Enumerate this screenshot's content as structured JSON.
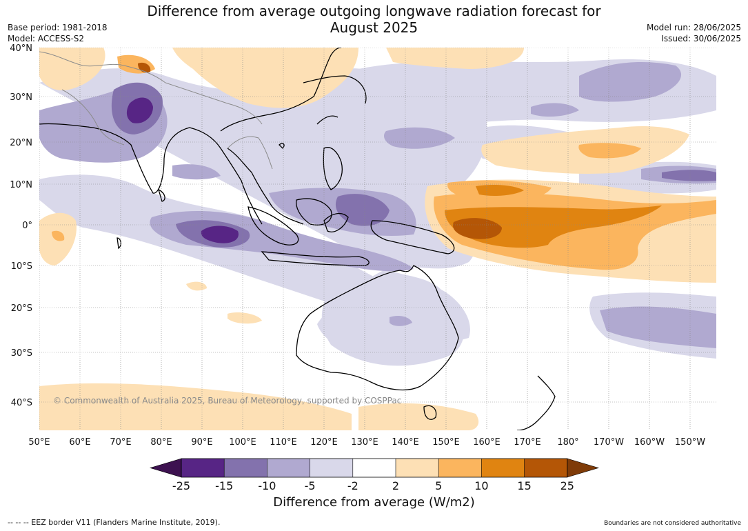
{
  "title_line1": "Difference from average outgoing longwave radiation forecast for",
  "title_line2": "August 2025",
  "base_period": "Base period: 1981-2018",
  "model": "Model: ACCESS-S2",
  "model_run": "Model run: 28/06/2025",
  "issued": "Issued: 30/06/2025",
  "lat_labels": [
    "40°N",
    "30°N",
    "20°N",
    "10°N",
    "0°",
    "10°S",
    "20°S",
    "30°S",
    "40°S"
  ],
  "lon_labels": [
    "50°E",
    "60°E",
    "70°E",
    "80°E",
    "90°E",
    "100°E",
    "110°E",
    "120°E",
    "130°E",
    "140°E",
    "150°E",
    "160°E",
    "170°E",
    "180°",
    "170°W",
    "160°W",
    "150°W"
  ],
  "copyright": "© Commonwealth of Australia 2025, Bureau of Meteorology, supported by COSPPac",
  "colorbar": {
    "title": "Difference from average (W/m2)",
    "ticks": [
      "-25",
      "-15",
      "-10",
      "-5",
      "-2",
      "2",
      "5",
      "10",
      "15",
      "25"
    ],
    "colors": [
      "#3d1150",
      "#572585",
      "#8372ad",
      "#b0a9d0",
      "#d9d8ea",
      "#ffffff",
      "#fde0b5",
      "#fbb55e",
      "#e08411",
      "#b45606",
      "#7f3b08"
    ]
  },
  "eez_note": "--  --  -- EEZ border V11 (Flanders Marine Institute, 2019).",
  "boundaries_note": "Boundaries are not considered authoritative"
}
